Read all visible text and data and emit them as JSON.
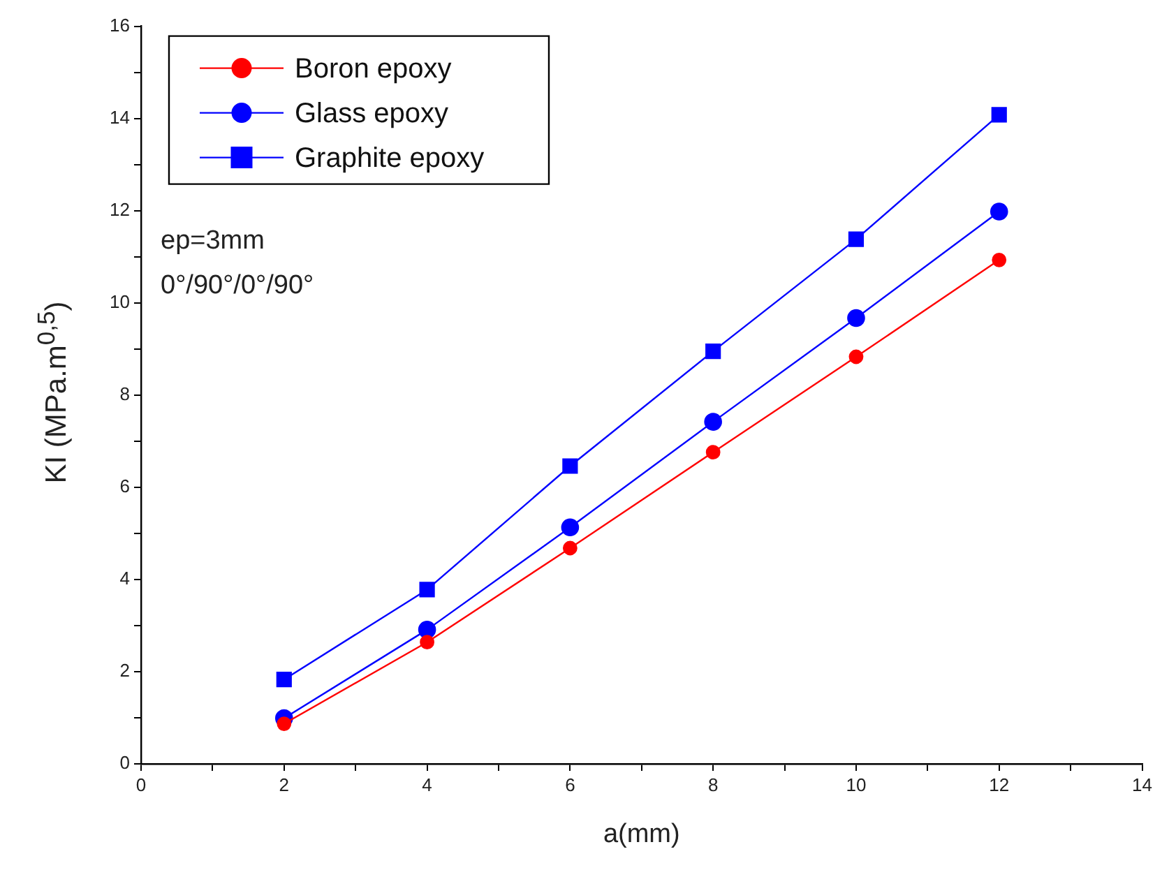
{
  "chart_data": {
    "type": "line",
    "xlabel": "a(mm)",
    "ylabel": "KI (MPa.m$^{0,5}$)",
    "x": [
      2,
      4,
      6,
      8,
      10,
      12
    ],
    "series": [
      {
        "name": "Boron epoxy",
        "color": "#ff0000",
        "marker": "circle",
        "values": [
          0.87,
          2.64,
          4.68,
          6.76,
          8.83,
          10.93
        ]
      },
      {
        "name": "Glass epoxy",
        "color": "#0000ff",
        "marker": "circle",
        "values": [
          0.99,
          2.91,
          5.13,
          7.42,
          9.67,
          11.98
        ]
      },
      {
        "name": "Graphite epoxy",
        "color": "#0000ff",
        "marker": "square",
        "values": [
          1.83,
          3.78,
          6.46,
          8.95,
          11.38,
          14.08
        ]
      }
    ],
    "xlim": [
      0,
      14
    ],
    "xticks": [
      0,
      {
        "value": 1,
        "label": null
      },
      2,
      {
        "value": 3,
        "label": null
      },
      4,
      {
        "value": 5,
        "label": null
      },
      6,
      {
        "value": 7,
        "label": null
      },
      8,
      {
        "value": 9,
        "label": null
      },
      10,
      {
        "value": 11,
        "label": null
      },
      12,
      {
        "value": 13,
        "label": null
      },
      14
    ],
    "ylim": [
      0,
      16
    ],
    "yticks": [
      0,
      {
        "value": 1,
        "label": null
      },
      2,
      {
        "value": 3,
        "label": null
      },
      4,
      {
        "value": 5,
        "label": null
      },
      6,
      {
        "value": 7,
        "label": null
      },
      8,
      {
        "value": 9,
        "label": null
      },
      10,
      {
        "value": 11,
        "label": null
      },
      12,
      {
        "value": 13,
        "label": null
      },
      14,
      {
        "value": 15,
        "label": null
      },
      16
    ],
    "annotations": [
      "ep=3mm",
      "0°/90°/0°/90°"
    ],
    "legend": "top left",
    "grid": false,
    "line_style": "solid"
  }
}
